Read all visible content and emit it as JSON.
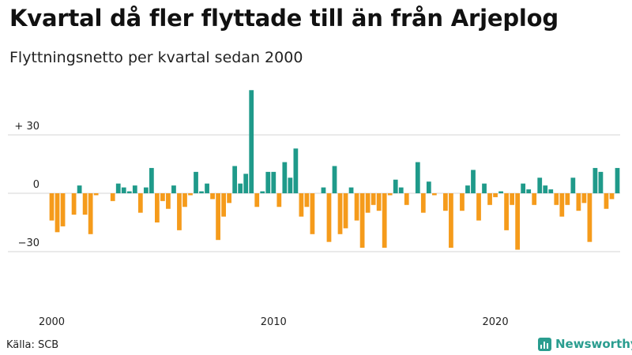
{
  "title": "Kvartal då fler flyttade till än från Arjeplog",
  "subtitle": "Flyttningsnetto per kvartal sedan 2000",
  "source": "Källa: SCB",
  "brand": "Newsworthy",
  "colors": {
    "positive": "#1f9a8a",
    "negative": "#f59b1b",
    "grid": "#d6d6d6",
    "brand": "#2a9d8f"
  },
  "chart_data": {
    "type": "bar",
    "title": "Kvartal då fler flyttade till än från Arjeplog",
    "subtitle": "Flyttningsnetto per kvartal sedan 2000",
    "xlabel": "",
    "ylabel": "Flyttningsnetto",
    "ylim": [
      -60,
      55
    ],
    "yticks": [
      {
        "value": 30,
        "label": "+ 30"
      },
      {
        "value": 0,
        "label": "0"
      },
      {
        "value": -30,
        "label": "−30"
      }
    ],
    "xticks": [
      {
        "index": 0,
        "label": "2000"
      },
      {
        "index": 40,
        "label": "2010"
      },
      {
        "index": 80,
        "label": "2020"
      }
    ],
    "start": "2000 Q1",
    "frequency": "quarter",
    "values": [
      -14,
      -20,
      -17,
      0,
      -11,
      4,
      -11,
      -21,
      -1,
      0,
      0,
      -4,
      5,
      3,
      1,
      4,
      -10,
      3,
      13,
      -15,
      -4,
      -8,
      4,
      -19,
      -7,
      -1,
      11,
      1,
      5,
      -3,
      -24,
      -12,
      -5,
      14,
      5,
      10,
      53,
      -7,
      1,
      11,
      11,
      -7,
      16,
      8,
      23,
      -12,
      -7,
      -21,
      0,
      3,
      -25,
      14,
      -21,
      -18,
      3,
      -14,
      -28,
      -10,
      -6,
      -9,
      -28,
      -1,
      7,
      3,
      -6,
      0,
      16,
      -10,
      6,
      -1,
      0,
      -9,
      -28,
      0,
      -9,
      4,
      12,
      -14,
      5,
      -6,
      -2,
      1,
      -19,
      -6,
      -29,
      5,
      2,
      -6,
      8,
      4,
      2,
      -6,
      -12,
      -6,
      8,
      -9,
      -5,
      -25,
      13,
      11,
      -8,
      -3,
      13
    ]
  }
}
